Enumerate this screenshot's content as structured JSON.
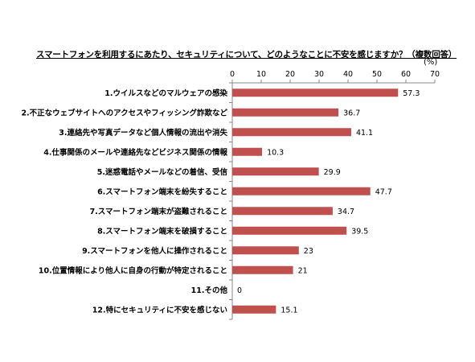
{
  "chart_data": {
    "type": "bar",
    "orientation": "horizontal",
    "title": "スマートフォンを利用するにあたり、セキュリティについて、どのようなことに不安を感じますか？（複数回答）",
    "unit": "(%)",
    "xlim": [
      0,
      70
    ],
    "xticks": [
      "0",
      "10",
      "20",
      "30",
      "40",
      "50",
      "60",
      "70"
    ],
    "bar_color": "#c0504d",
    "grid": false,
    "categories": [
      "1.ウイルスなどのマルウェアの感染",
      "2.不正なウェブサイトへのアクセスやフィッシング詐欺など",
      "3.連絡先や写真データなど個人情報の流出や消失",
      "4.仕事関係のメールや連絡先などビジネス関係の情報",
      "5.迷惑電話やメールなどの着信、受信",
      "6.スマートフォン端末を紛失すること",
      "7.スマートフォン端末が盗難されること",
      "8.スマートフォン端末を破損すること",
      "9.スマートフォンを他人に操作されること",
      "10.位置情報により他人に自身の行動が特定されること",
      "11.その他",
      "12.特にセキュリティに不安を感じない"
    ],
    "values": [
      57.3,
      36.7,
      41.1,
      10.3,
      29.9,
      47.7,
      34.7,
      39.5,
      23,
      21,
      0,
      15.1
    ],
    "value_labels": [
      "57.3",
      "36.7",
      "41.1",
      "10.3",
      "29.9",
      "47.7",
      "34.7",
      "39.5",
      "23",
      "21",
      "0",
      "15.1"
    ]
  }
}
